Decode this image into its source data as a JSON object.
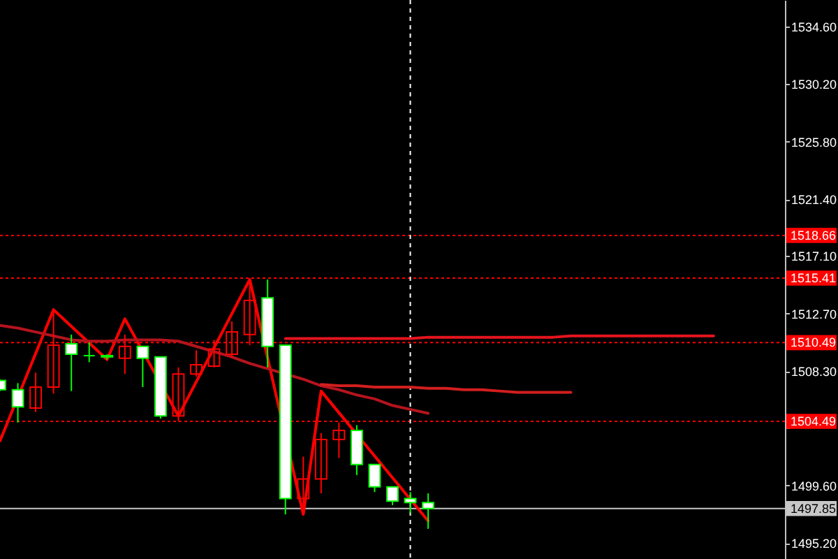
{
  "chart_data": {
    "type": "candlestick",
    "categories": [
      null,
      null,
      null,
      null,
      null,
      null,
      null,
      null,
      null,
      null,
      null,
      null,
      null,
      null,
      null,
      null,
      null,
      null,
      null,
      null,
      null,
      null,
      null,
      null,
      null,
      null,
      null,
      null,
      null,
      null,
      null,
      null,
      null,
      null,
      null,
      null,
      null,
      null,
      null,
      null,
      null,
      null,
      null,
      null
    ],
    "ohlc": [
      [
        1507.6,
        1507.7,
        1506.8,
        1506.9
      ],
      [
        1506.9,
        1507.4,
        1504.4,
        1505.6
      ],
      [
        1505.5,
        1508.2,
        1505.2,
        1507.1
      ],
      [
        1507.1,
        1512.9,
        1506.6,
        1510.3
      ],
      [
        1510.4,
        1511.1,
        1506.8,
        1509.6
      ],
      [
        1509.5,
        1510.5,
        1509.0,
        1509.5
      ],
      [
        1509.5,
        1509.6,
        1509.2,
        1509.4
      ],
      [
        1509.3,
        1511.1,
        1508.1,
        1510.2
      ],
      [
        1510.2,
        1510.2,
        1507.1,
        1509.3
      ],
      [
        1509.4,
        1509.4,
        1504.7,
        1504.9
      ],
      [
        1504.9,
        1508.6,
        1504.5,
        1508.1
      ],
      [
        1508.1,
        1509.9,
        1507.9,
        1508.8
      ],
      [
        1508.7,
        1510.7,
        1508.6,
        1510.0
      ],
      [
        1509.6,
        1512.1,
        1509.3,
        1511.3
      ],
      [
        1511.1,
        1515.0,
        1510.3,
        1513.7
      ],
      [
        1513.9,
        1515.3,
        1508.6,
        1510.2
      ],
      [
        1510.3,
        1510.3,
        1497.4,
        1498.6
      ],
      [
        1498.6,
        1501.8,
        1497.4,
        1500.1
      ],
      [
        1500.1,
        1503.6,
        1499.0,
        1503.1
      ],
      [
        1503.1,
        1504.4,
        1501.7,
        1503.8
      ],
      [
        1503.8,
        1504.2,
        1500.4,
        1501.2
      ],
      [
        1501.2,
        1501.2,
        1499.1,
        1499.5
      ],
      [
        1499.5,
        1499.5,
        1498.1,
        1498.4
      ],
      [
        1498.6,
        1499.1,
        1497.5,
        1498.3
      ],
      [
        1498.3,
        1499.0,
        1496.3,
        1497.85
      ],
      null,
      null,
      null,
      null,
      null,
      null,
      null,
      null,
      null,
      null,
      null,
      null,
      null,
      null,
      null,
      null,
      null,
      null,
      null
    ],
    "colors": [
      "#00ff00",
      "#00ff00",
      "#ff0000",
      "#ff0000",
      "#00ff00",
      "#00ff00",
      "#00ff00",
      "#ff0000",
      "#00ff00",
      "#00ff00",
      "#ff0000",
      "#ff0000",
      "#ff0000",
      "#ff0000",
      "#ff0000",
      "#00ff00",
      "#00ff00",
      "#ff0000",
      "#ff0000",
      "#ff0000",
      "#00ff00",
      "#00ff00",
      "#00ff00",
      "#00ff00",
      "#00ff00",
      null,
      null,
      null,
      null,
      null,
      null,
      null,
      null,
      null,
      null,
      null,
      null,
      null,
      null,
      null,
      null,
      null,
      null,
      null
    ],
    "series": [
      {
        "type": "line",
        "color": "#ff0000",
        "values": [
          1503.0,
          null,
          null,
          1513.0,
          null,
          null,
          1509.2,
          1512.3,
          null,
          null,
          1504.9,
          null,
          null,
          null,
          1515.3,
          null,
          null,
          1497.4,
          1506.8,
          null,
          null,
          null,
          null,
          null,
          1496.9,
          null,
          null,
          null,
          null,
          null,
          null,
          null,
          null,
          null,
          null,
          null,
          null,
          null,
          null,
          null,
          null,
          null,
          null,
          null
        ]
      },
      {
        "type": "line",
        "color": "#b4141e",
        "values": [
          1511.8,
          1511.6,
          1511.3,
          1511.0,
          1510.7,
          1510.6,
          1510.6,
          1510.7,
          1510.7,
          1510.7,
          1510.6,
          1510.2,
          1509.8,
          1509.4,
          1508.9,
          1508.5,
          null,
          1507.7,
          1507.2,
          1506.9,
          1506.5,
          1506.2,
          1505.7,
          1505.4,
          1505.1,
          null,
          null,
          null,
          null,
          null,
          null,
          null,
          null,
          null,
          null,
          null,
          null,
          null,
          null,
          null,
          null,
          null,
          null,
          null
        ]
      },
      {
        "type": "line",
        "color": "#e6141e",
        "values": [
          null,
          null,
          null,
          null,
          null,
          null,
          null,
          null,
          null,
          null,
          null,
          null,
          null,
          null,
          null,
          null,
          1510.8,
          1510.8,
          1510.8,
          1510.8,
          1510.8,
          1510.8,
          1510.8,
          1510.8,
          1510.9,
          1510.9,
          1510.9,
          1510.9,
          1510.9,
          1510.9,
          1510.9,
          1510.9,
          1511.0,
          1511.0,
          1511.0,
          1511.0,
          1511.0,
          1511.0,
          1511.0,
          1511.0,
          1511.0,
          null,
          null,
          null
        ]
      },
      {
        "type": "line",
        "color": "#d21e1e",
        "values": [
          null,
          null,
          null,
          null,
          null,
          null,
          null,
          null,
          null,
          null,
          null,
          null,
          null,
          null,
          null,
          null,
          null,
          null,
          1507.3,
          1507.2,
          1507.2,
          1507.1,
          1507.1,
          1507.1,
          1507.0,
          1507.0,
          1506.9,
          1506.9,
          1506.8,
          1506.7,
          1506.7,
          1506.7,
          1506.7,
          null,
          null,
          null,
          null,
          null,
          null,
          null,
          null,
          null,
          null,
          null
        ]
      }
    ],
    "ylim": [
      1494.0,
      1536.6
    ],
    "yticks": [
      {
        "value": 1495.2,
        "label": "1495.20"
      },
      {
        "value": 1499.6,
        "label": "1499.60"
      },
      {
        "value": 1504.0,
        "label": null
      },
      {
        "value": 1508.3,
        "label": "1508.30"
      },
      {
        "value": 1512.7,
        "label": "1512.70"
      },
      {
        "value": 1517.1,
        "label": "1517.10"
      },
      {
        "value": 1521.4,
        "label": "1521.40"
      },
      {
        "value": 1525.8,
        "label": "1525.80"
      },
      {
        "value": 1530.2,
        "label": "1530.20"
      },
      {
        "value": 1534.6,
        "label": "1534.60"
      }
    ],
    "ref_lines": [
      {
        "axis": "y",
        "value": 1518.66,
        "label": "1518.66",
        "color": "#ff0000",
        "line_style": "dotted"
      },
      {
        "axis": "y",
        "value": 1515.41,
        "label": "1515.41",
        "color": "#ff0000",
        "line_style": "dotted"
      },
      {
        "axis": "y",
        "value": 1510.49,
        "label": "1510.49",
        "color": "#ff0000",
        "line_style": "dotted"
      },
      {
        "axis": "y",
        "value": 1504.49,
        "label": "1504.49",
        "color": "#ff0000",
        "line_style": "dotted"
      },
      {
        "axis": "y",
        "value": 1497.85,
        "label": "1497.85",
        "color": "#c8c8c8",
        "line_style": "solid"
      }
    ],
    "tick_labels": "y"
  }
}
